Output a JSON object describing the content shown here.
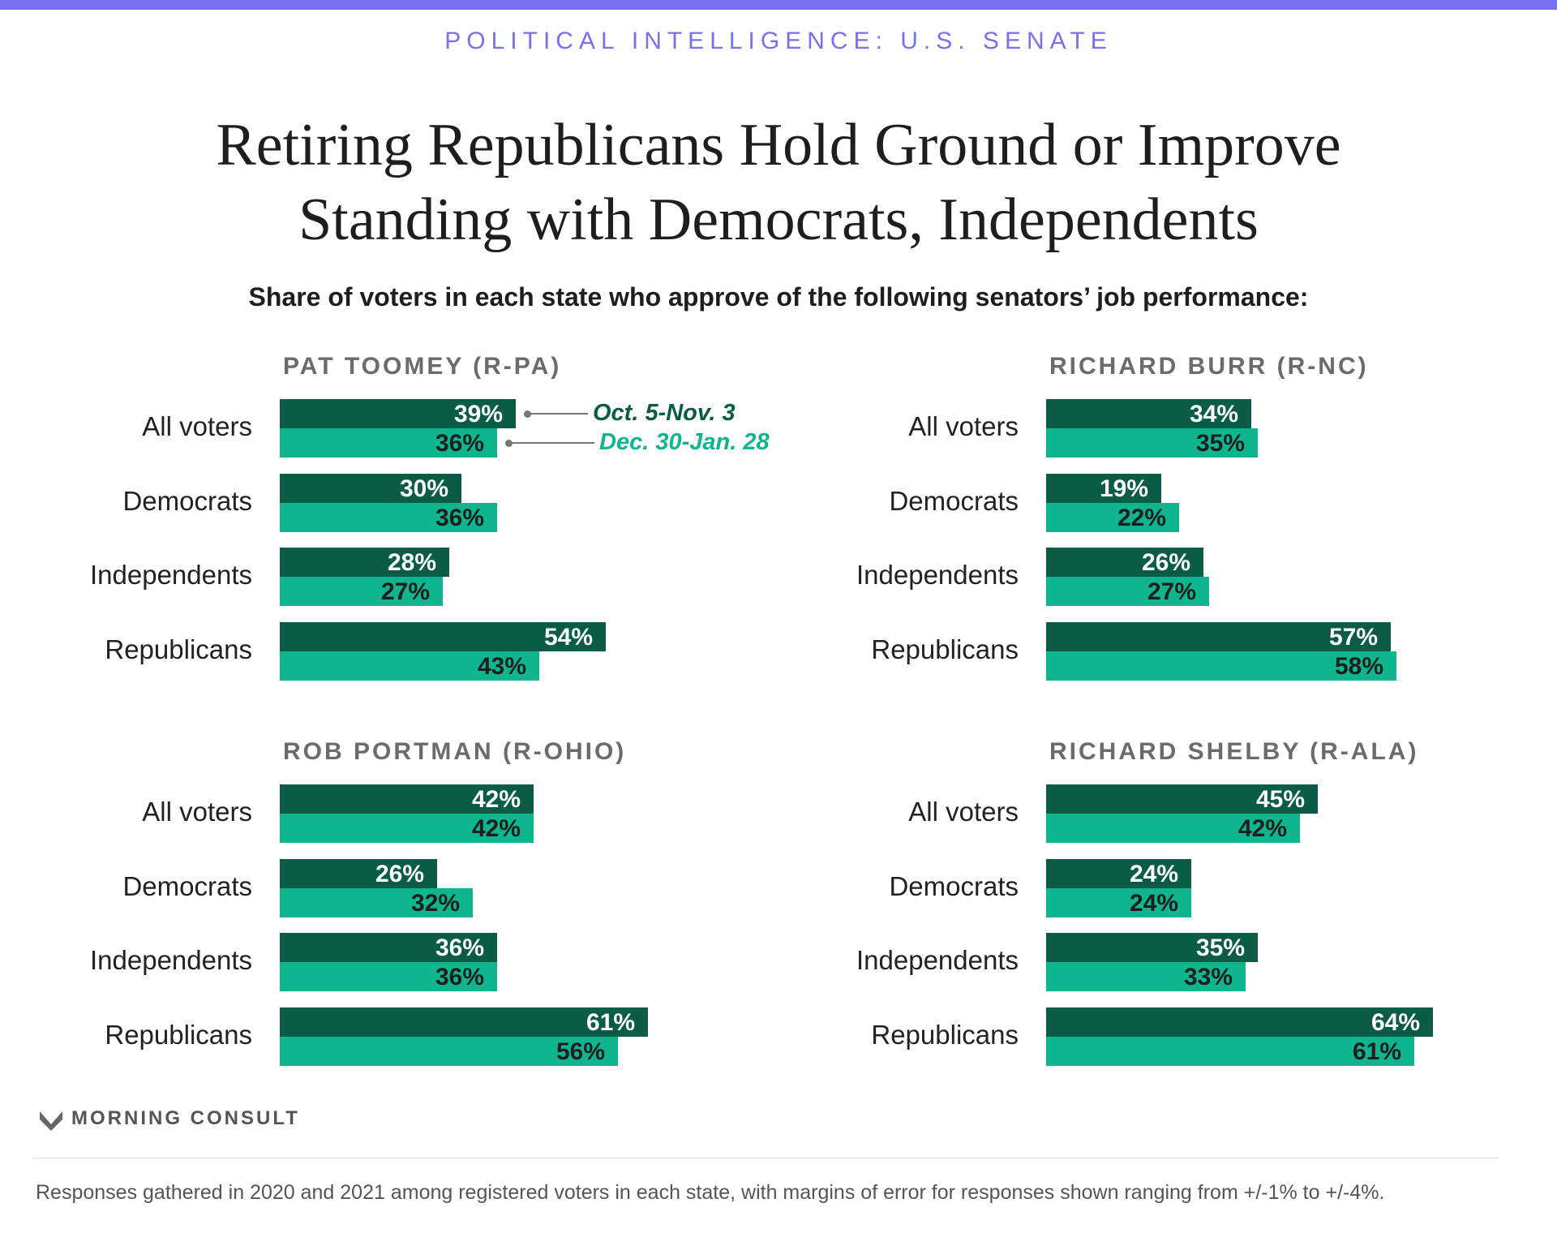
{
  "header": {
    "kicker": "POLITICAL INTELLIGENCE: U.S. SENATE",
    "title": "Retiring Republicans Hold Ground or Improve Standing with Democrats, Independents",
    "subtitle": "Share of voters in each state who approve of the following senators’ job performance:"
  },
  "legend": {
    "series1": "Oct. 5-Nov. 3",
    "series2": "Dec. 30-Jan. 28"
  },
  "colors": {
    "series1": "#0a5c45",
    "series2": "#0fb58f",
    "kicker": "#7a6ff0"
  },
  "chart_data": [
    {
      "type": "bar",
      "title": "PAT TOOMEY (R-PA)",
      "categories": [
        "All voters",
        "Democrats",
        "Independents",
        "Republicans"
      ],
      "series": [
        {
          "name": "Oct. 5-Nov. 3",
          "values": [
            39,
            30,
            28,
            54
          ]
        },
        {
          "name": "Dec. 30-Jan. 28",
          "values": [
            36,
            36,
            27,
            43
          ]
        }
      ],
      "value_suffix": "%"
    },
    {
      "type": "bar",
      "title": "RICHARD BURR (R-NC)",
      "categories": [
        "All voters",
        "Democrats",
        "Independents",
        "Republicans"
      ],
      "series": [
        {
          "name": "Oct. 5-Nov. 3",
          "values": [
            34,
            19,
            26,
            57
          ]
        },
        {
          "name": "Dec. 30-Jan. 28",
          "values": [
            35,
            22,
            27,
            58
          ]
        }
      ],
      "value_suffix": "%"
    },
    {
      "type": "bar",
      "title": "ROB PORTMAN (R-OHIO)",
      "categories": [
        "All voters",
        "Democrats",
        "Independents",
        "Republicans"
      ],
      "series": [
        {
          "name": "Oct. 5-Nov. 3",
          "values": [
            42,
            26,
            36,
            61
          ]
        },
        {
          "name": "Dec. 30-Jan. 28",
          "values": [
            42,
            32,
            36,
            56
          ]
        }
      ],
      "value_suffix": "%"
    },
    {
      "type": "bar",
      "title": "RICHARD SHELBY (R-ALA)",
      "categories": [
        "All voters",
        "Democrats",
        "Independents",
        "Republicans"
      ],
      "series": [
        {
          "name": "Oct. 5-Nov. 3",
          "values": [
            45,
            24,
            35,
            64
          ]
        },
        {
          "name": "Dec. 30-Jan. 28",
          "values": [
            42,
            24,
            33,
            61
          ]
        }
      ],
      "value_suffix": "%"
    }
  ],
  "footer": {
    "brand": "MORNING CONSULT",
    "note": "Responses gathered in 2020 and 2021 among registered voters in each state, with margins of error for responses shown ranging from +/-1% to +/-4%."
  }
}
